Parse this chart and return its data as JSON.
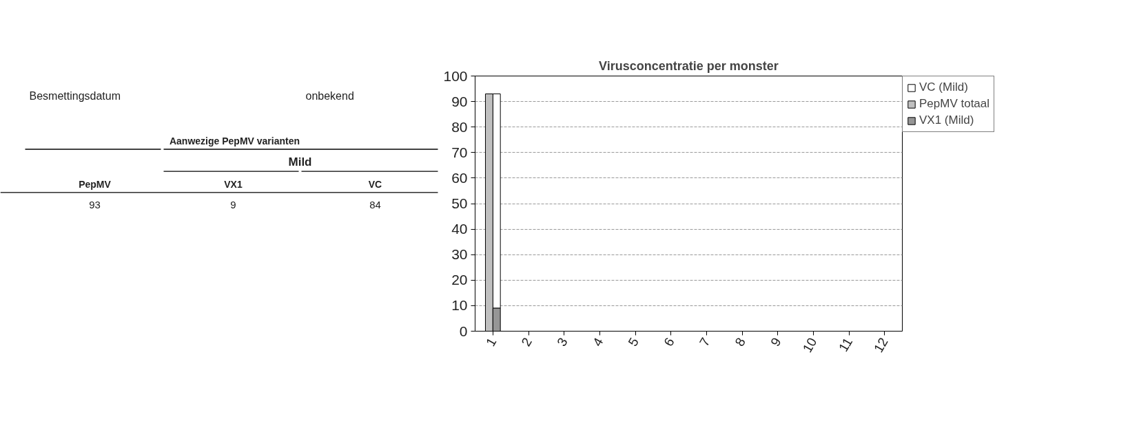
{
  "chart_data": [
    {
      "type": "other",
      "annotations": [
        "Besmettingsdatum",
        "onbekend",
        "Aanwezige PepMV varianten",
        "Mild",
        "PepMV",
        "VX1",
        "VC",
        "93",
        "9",
        "84"
      ]
    },
    {
      "type": "bar",
      "title": "Virusconcentratie per monster",
      "categories": [
        "1",
        "2",
        "3",
        "4",
        "5",
        "6",
        "7",
        "8",
        "9",
        "10",
        "11",
        "12"
      ],
      "series": [
        {
          "name": "VC (Mild)",
          "color": "#ffffff",
          "values": [
            84,
            null,
            null,
            null,
            null,
            null,
            null,
            null,
            null,
            null,
            null,
            null
          ],
          "base": [
            9,
            null,
            null,
            null,
            null,
            null,
            null,
            null,
            null,
            null,
            null,
            null
          ]
        },
        {
          "name": "PepMV totaal",
          "color": "#c0c0c0",
          "values": [
            93,
            null,
            null,
            null,
            null,
            null,
            null,
            null,
            null,
            null,
            null,
            null
          ]
        },
        {
          "name": "VX1 (Mild)",
          "color": "#969696",
          "values": [
            9,
            null,
            null,
            null,
            null,
            null,
            null,
            null,
            null,
            null,
            null,
            null
          ]
        }
      ],
      "ylim": [
        0,
        100
      ],
      "yticks": [
        0,
        10,
        20,
        30,
        40,
        50,
        60,
        70,
        80,
        90,
        100
      ],
      "grid": "y",
      "legend": "right"
    }
  ]
}
